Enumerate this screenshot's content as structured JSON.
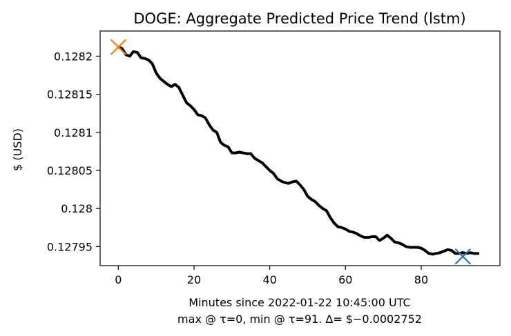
{
  "chart_data": {
    "type": "line",
    "title": "DOGE: Aggregate Predicted Price Trend (lstm)",
    "ylabel": "$ (USD)",
    "xlabel": "Minutes since 2022-01-22 10:45:00 UTC",
    "subtitle": "max @ τ=0, min @ τ=91. Δ= $−0.0002752",
    "xlim": [
      -4.8,
      100.8
    ],
    "ylim": [
      0.127925,
      0.128233
    ],
    "x_ticks": [
      0,
      20,
      40,
      60,
      80
    ],
    "x_tick_labels": [
      "0",
      "20",
      "40",
      "60",
      "80"
    ],
    "y_ticks": [
      0.12795,
      0.128,
      0.12805,
      0.1281,
      0.12815,
      0.1282
    ],
    "y_tick_labels": [
      "0.12795",
      "0.128",
      "0.12805",
      "0.1281",
      "0.12815",
      "0.1282"
    ],
    "grid": false,
    "series": [
      {
        "color": "#000000",
        "x": [
          0,
          1,
          2,
          3,
          4,
          5,
          6,
          7,
          8,
          9,
          10,
          11,
          12,
          13,
          14,
          15,
          16,
          17,
          18,
          19,
          20,
          21,
          22,
          23,
          24,
          25,
          26,
          27,
          28,
          29,
          30,
          31,
          32,
          33,
          34,
          35,
          36,
          37,
          38,
          39,
          40,
          41,
          42,
          43,
          44,
          45,
          46,
          47,
          48,
          49,
          50,
          51,
          52,
          53,
          54,
          55,
          56,
          57,
          58,
          59,
          60,
          61,
          62,
          63,
          64,
          65,
          66,
          67,
          68,
          69,
          70,
          71,
          72,
          73,
          74,
          75,
          76,
          77,
          78,
          79,
          80,
          81,
          82,
          83,
          84,
          85,
          86,
          87,
          88,
          89,
          90,
          91,
          92,
          93,
          94,
          95
        ],
        "y": [
          0.128212,
          0.12821,
          0.128202,
          0.1282,
          0.128206,
          0.128205,
          0.128198,
          0.128197,
          0.128195,
          0.12819,
          0.128178,
          0.128171,
          0.128167,
          0.128163,
          0.12816,
          0.128163,
          0.128159,
          0.128149,
          0.128139,
          0.128135,
          0.12813,
          0.128123,
          0.128122,
          0.128119,
          0.12811,
          0.128103,
          0.1281,
          0.128087,
          0.128083,
          0.128081,
          0.128073,
          0.128073,
          0.128074,
          0.128073,
          0.128072,
          0.128072,
          0.128066,
          0.128063,
          0.12806,
          0.128055,
          0.12805,
          0.128046,
          0.128039,
          0.128036,
          0.128034,
          0.128033,
          0.128035,
          0.128036,
          0.128031,
          0.128025,
          0.128016,
          0.128012,
          0.128009,
          0.128004,
          0.128,
          0.127997,
          0.127988,
          0.127981,
          0.127976,
          0.127975,
          0.127973,
          0.12797,
          0.127969,
          0.127967,
          0.127964,
          0.127962,
          0.127962,
          0.127963,
          0.127963,
          0.127958,
          0.127961,
          0.127965,
          0.127961,
          0.127956,
          0.127955,
          0.127953,
          0.12795,
          0.127949,
          0.127949,
          0.127949,
          0.127948,
          0.127945,
          0.127941,
          0.12794,
          0.127941,
          0.127942,
          0.127944,
          0.127946,
          0.127945,
          0.127941,
          0.127941,
          0.127942,
          0.127941,
          0.127942,
          0.127941,
          0.127941
        ]
      }
    ],
    "markers": [
      {
        "x": 0,
        "y": 0.128212,
        "symbol": "x",
        "color": "#ff7f0e"
      },
      {
        "x": 91,
        "y": 0.127937,
        "symbol": "x",
        "color": "#1f77b4"
      }
    ]
  }
}
